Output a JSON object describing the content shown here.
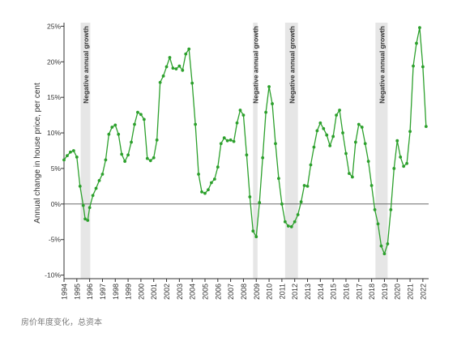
{
  "caption": "房价年度变化，总资本",
  "chart_data": {
    "type": "line",
    "title": "",
    "xlabel": "",
    "ylabel": "Annual change in house price, per cent",
    "xlim": [
      1994,
      2022.45
    ],
    "ylim": [
      -10.5,
      25.5
    ],
    "x_ticks": [
      1994,
      1995,
      1996,
      1997,
      1998,
      1999,
      2000,
      2001,
      2002,
      2003,
      2004,
      2005,
      2006,
      2007,
      2008,
      2009,
      2010,
      2011,
      2012,
      2013,
      2014,
      2015,
      2016,
      2017,
      2018,
      2019,
      2020,
      2021,
      2022
    ],
    "y_ticks": [
      {
        "value": 25,
        "label": "25%"
      },
      {
        "value": 20,
        "label": "20%"
      },
      {
        "value": 15,
        "label": "15%"
      },
      {
        "value": 10,
        "label": "10%"
      },
      {
        "value": 5,
        "label": "5%"
      },
      {
        "value": 0,
        "label": "0%"
      },
      {
        "value": -5,
        "label": "-5%"
      },
      {
        "value": -10,
        "label": "-10%"
      }
    ],
    "grid": false,
    "zero_line": true,
    "line_color": "#2ca02c",
    "band_color": "#e6e6e6",
    "shaded_periods": [
      {
        "start": 1995.3,
        "end": 1996.05,
        "label": "Negative annual growth"
      },
      {
        "start": 2008.75,
        "end": 2009.1,
        "label": "Negative annual growth"
      },
      {
        "start": 2011.25,
        "end": 2012.25,
        "label": "Negative annual growth"
      },
      {
        "start": 2018.3,
        "end": 2019.25,
        "label": "Negative annual growth"
      }
    ],
    "series": [
      {
        "name": "",
        "points": [
          [
            1994.0,
            6.2
          ],
          [
            1994.25,
            6.8
          ],
          [
            1994.5,
            7.3
          ],
          [
            1994.75,
            7.5
          ],
          [
            1995.0,
            6.6
          ],
          [
            1995.25,
            2.5
          ],
          [
            1995.5,
            -0.2
          ],
          [
            1995.65,
            -2.1
          ],
          [
            1995.85,
            -2.3
          ],
          [
            1996.0,
            -0.5
          ],
          [
            1996.25,
            1.2
          ],
          [
            1996.5,
            2.2
          ],
          [
            1996.75,
            3.3
          ],
          [
            1997.0,
            4.2
          ],
          [
            1997.25,
            6.2
          ],
          [
            1997.5,
            9.8
          ],
          [
            1997.75,
            10.8
          ],
          [
            1998.0,
            11.1
          ],
          [
            1998.25,
            9.8
          ],
          [
            1998.5,
            7.0
          ],
          [
            1998.75,
            6.0
          ],
          [
            1999.0,
            6.9
          ],
          [
            1999.25,
            8.7
          ],
          [
            1999.5,
            11.2
          ],
          [
            1999.75,
            12.9
          ],
          [
            2000.0,
            12.6
          ],
          [
            2000.25,
            11.9
          ],
          [
            2000.5,
            6.4
          ],
          [
            2000.75,
            6.1
          ],
          [
            2001.0,
            6.5
          ],
          [
            2001.25,
            9.0
          ],
          [
            2001.5,
            17.1
          ],
          [
            2001.75,
            18.0
          ],
          [
            2002.0,
            19.3
          ],
          [
            2002.25,
            20.6
          ],
          [
            2002.5,
            19.1
          ],
          [
            2002.75,
            19.0
          ],
          [
            2003.0,
            19.4
          ],
          [
            2003.25,
            18.8
          ],
          [
            2003.5,
            21.1
          ],
          [
            2003.75,
            21.8
          ],
          [
            2004.0,
            17.0
          ],
          [
            2004.25,
            11.2
          ],
          [
            2004.5,
            4.2
          ],
          [
            2004.75,
            1.7
          ],
          [
            2005.0,
            1.5
          ],
          [
            2005.25,
            2.0
          ],
          [
            2005.5,
            3.0
          ],
          [
            2005.75,
            3.5
          ],
          [
            2006.0,
            5.2
          ],
          [
            2006.25,
            8.5
          ],
          [
            2006.5,
            9.3
          ],
          [
            2006.75,
            8.9
          ],
          [
            2007.0,
            9.0
          ],
          [
            2007.25,
            8.8
          ],
          [
            2007.5,
            11.4
          ],
          [
            2007.75,
            13.2
          ],
          [
            2008.0,
            12.5
          ],
          [
            2008.25,
            6.9
          ],
          [
            2008.5,
            1.0
          ],
          [
            2008.75,
            -3.8
          ],
          [
            2009.0,
            -4.6
          ],
          [
            2009.25,
            0.2
          ],
          [
            2009.5,
            6.5
          ],
          [
            2009.75,
            12.9
          ],
          [
            2010.0,
            16.5
          ],
          [
            2010.25,
            14.1
          ],
          [
            2010.5,
            8.5
          ],
          [
            2010.75,
            3.6
          ],
          [
            2011.0,
            0.0
          ],
          [
            2011.25,
            -2.5
          ],
          [
            2011.5,
            -3.1
          ],
          [
            2011.75,
            -3.2
          ],
          [
            2012.0,
            -2.5
          ],
          [
            2012.25,
            -1.5
          ],
          [
            2012.5,
            0.3
          ],
          [
            2012.75,
            2.6
          ],
          [
            2013.0,
            2.5
          ],
          [
            2013.25,
            5.5
          ],
          [
            2013.5,
            8.0
          ],
          [
            2013.75,
            10.3
          ],
          [
            2014.0,
            11.4
          ],
          [
            2014.25,
            10.6
          ],
          [
            2014.5,
            9.7
          ],
          [
            2014.75,
            8.2
          ],
          [
            2015.0,
            9.5
          ],
          [
            2015.25,
            12.5
          ],
          [
            2015.5,
            13.2
          ],
          [
            2015.75,
            10.0
          ],
          [
            2016.0,
            7.1
          ],
          [
            2016.25,
            4.3
          ],
          [
            2016.5,
            3.8
          ],
          [
            2016.75,
            8.7
          ],
          [
            2017.0,
            11.2
          ],
          [
            2017.25,
            10.8
          ],
          [
            2017.5,
            8.5
          ],
          [
            2017.75,
            6.0
          ],
          [
            2018.0,
            2.6
          ],
          [
            2018.25,
            -0.8
          ],
          [
            2018.5,
            -2.8
          ],
          [
            2018.75,
            -5.9
          ],
          [
            2019.0,
            -7.0
          ],
          [
            2019.25,
            -5.6
          ],
          [
            2019.5,
            -0.8
          ],
          [
            2019.75,
            5.0
          ],
          [
            2020.0,
            8.9
          ],
          [
            2020.25,
            6.6
          ],
          [
            2020.5,
            5.3
          ],
          [
            2020.75,
            5.7
          ],
          [
            2021.0,
            10.2
          ],
          [
            2021.25,
            19.4
          ],
          [
            2021.5,
            22.6
          ],
          [
            2021.75,
            24.8
          ],
          [
            2022.0,
            19.3
          ],
          [
            2022.25,
            10.9
          ]
        ]
      }
    ]
  }
}
